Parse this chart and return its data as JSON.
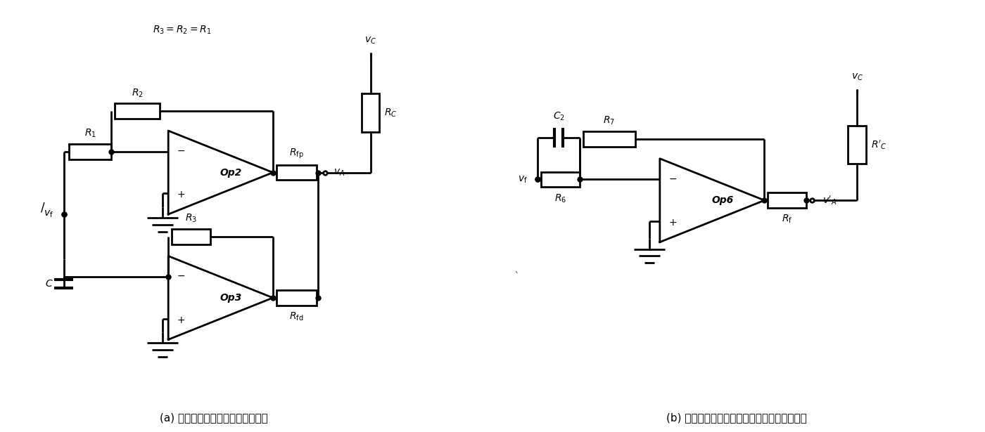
{
  "fig_width": 14.0,
  "fig_height": 6.15,
  "bg_color": "#ffffff",
  "line_color": "#000000",
  "line_width": 2.0,
  "caption_a": "(a) 分别利用两个运算放大器的方式",
  "caption_b": "(b) 利用一个运算放大器完成比例与微分的方式",
  "top_label": "$R_3=R_2=R_1$",
  "font_size_label": 10,
  "font_size_caption": 11
}
